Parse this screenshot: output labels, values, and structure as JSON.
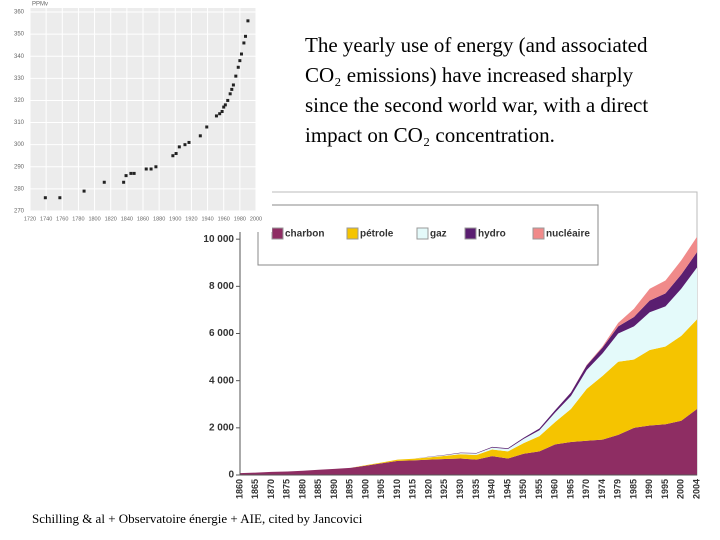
{
  "chart_data": [
    {
      "type": "scatter",
      "ylabel": "PPMv",
      "xlim": [
        1720,
        2000
      ],
      "ylim": [
        270,
        360
      ],
      "xticks": [
        1720,
        1740,
        1760,
        1780,
        1800,
        1820,
        1840,
        1860,
        1880,
        1900,
        1920,
        1940,
        1960,
        1980,
        2000
      ],
      "yticks": [
        270,
        280,
        290,
        300,
        310,
        320,
        330,
        340,
        350,
        360
      ],
      "grid": true,
      "color": "#222222",
      "x": [
        1739,
        1757,
        1787,
        1812,
        1836,
        1839,
        1845,
        1849,
        1864,
        1870,
        1876,
        1897,
        1901,
        1905,
        1912,
        1917,
        1931,
        1939,
        1951,
        1955,
        1958,
        1960,
        1962,
        1965,
        1968,
        1970,
        1972,
        1975,
        1978,
        1980,
        1982,
        1985,
        1987,
        1990
      ],
      "values": [
        276,
        276,
        279,
        283,
        283,
        286,
        287,
        287,
        289,
        289,
        290,
        295,
        296,
        299,
        300,
        301,
        304,
        308,
        313,
        314,
        315,
        317,
        318,
        320,
        323,
        325,
        327,
        331,
        335,
        338,
        341,
        346,
        349,
        356
      ]
    },
    {
      "type": "stacked_area",
      "legend": "top-left",
      "ylim": [
        0,
        12000
      ],
      "yticks": [
        0,
        {
          "value": 2000,
          "label": "2 000"
        },
        {
          "value": 4000,
          "label": "4 000"
        },
        {
          "value": 6000,
          "label": "6 000"
        },
        {
          "value": 8000,
          "label": "8 000"
        },
        {
          "value": 10000,
          "label": "10 000"
        }
      ],
      "categories": [
        "1860",
        "1865",
        "1870",
        "1875",
        "1880",
        "1885",
        "1890",
        "1895",
        "1900",
        "1905",
        "1910",
        "1915",
        "1920",
        "1925",
        "1930",
        "1935",
        "1940",
        "1945",
        "1950",
        "1955",
        "1960",
        "1965",
        "1970",
        "1974",
        "1979",
        "1985",
        "1990",
        "1995",
        "2000",
        "2004"
      ],
      "series": [
        {
          "name": "charbon",
          "color": "#8e2d63",
          "values": [
            80,
            100,
            130,
            150,
            180,
            220,
            260,
            300,
            400,
            500,
            600,
            620,
            650,
            680,
            700,
            650,
            800,
            700,
            900,
            1000,
            1300,
            1400,
            1450,
            1500,
            1700,
            2000,
            2100,
            2150,
            2300,
            2800
          ]
        },
        {
          "name": "pétrole",
          "color": "#f5c400",
          "values": [
            0,
            0,
            0,
            0,
            0,
            0,
            0,
            0,
            20,
            30,
            50,
            70,
            100,
            130,
            180,
            200,
            280,
            300,
            450,
            650,
            950,
            1400,
            2200,
            2700,
            3100,
            2900,
            3200,
            3300,
            3600,
            3800
          ]
        },
        {
          "name": "gaz",
          "color": "#e4fafa",
          "values": [
            0,
            0,
            0,
            0,
            0,
            0,
            0,
            0,
            0,
            0,
            0,
            0,
            20,
            30,
            50,
            60,
            80,
            100,
            180,
            250,
            400,
            550,
            800,
            950,
            1200,
            1400,
            1600,
            1700,
            2000,
            2200
          ]
        },
        {
          "name": "hydro",
          "color": "#5a1e70",
          "values": [
            0,
            0,
            0,
            0,
            0,
            0,
            0,
            0,
            0,
            0,
            0,
            0,
            10,
            15,
            20,
            25,
            30,
            35,
            50,
            70,
            100,
            150,
            200,
            250,
            300,
            400,
            500,
            550,
            600,
            650
          ]
        },
        {
          "name": "nucléaire",
          "color": "#f08a8a",
          "values": [
            0,
            0,
            0,
            0,
            0,
            0,
            0,
            0,
            0,
            0,
            0,
            0,
            0,
            0,
            0,
            0,
            0,
            0,
            0,
            0,
            0,
            5,
            20,
            50,
            150,
            350,
            500,
            550,
            600,
            650
          ]
        }
      ]
    }
  ],
  "text": "The yearly use of energy (and associated CO₂ emissions) have increased sharply since the second world war, with a direct impact on CO₂ concentration.",
  "source": "Schilling & al + Observatoire énergie + AIE, cited by Jancovici"
}
